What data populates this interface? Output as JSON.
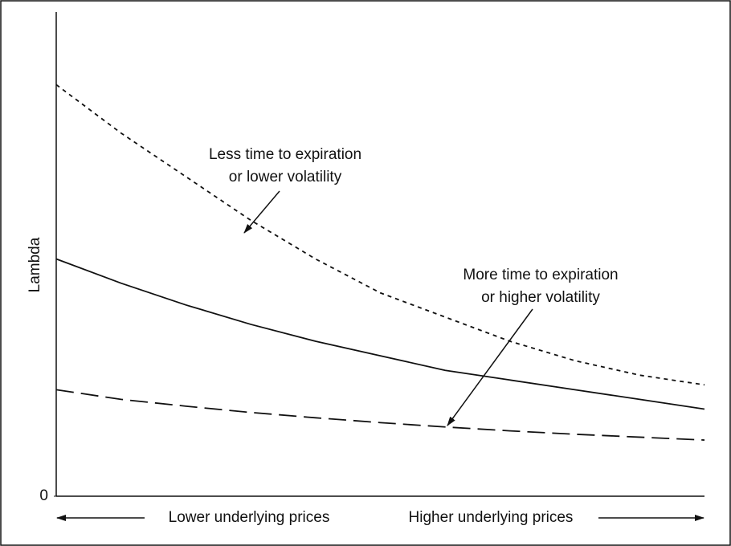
{
  "chart_data": {
    "type": "line",
    "ylabel": "Lambda",
    "x_left_label": "Lower underlying prices",
    "x_right_label": "Higher underlying prices",
    "x": [
      0,
      10,
      20,
      30,
      40,
      50,
      60,
      70,
      80,
      90,
      100
    ],
    "xlim": [
      0,
      100
    ],
    "ylim": [
      0,
      100
    ],
    "yticks": [
      0
    ],
    "series": [
      {
        "color": "#111111",
        "style": "dotted",
        "values": [
          85,
          75,
          66,
          57,
          49,
          42,
          37,
          32,
          28,
          25,
          23
        ]
      },
      {
        "color": "#111111",
        "style": "solid",
        "values": [
          49,
          44,
          39.5,
          35.5,
          32,
          29,
          26,
          24,
          22,
          20,
          18
        ]
      },
      {
        "color": "#111111",
        "style": "dashed",
        "values": [
          22,
          20,
          18.6,
          17.3,
          16.2,
          15.2,
          14.3,
          13.5,
          12.8,
          12.2,
          11.6
        ]
      }
    ],
    "annotations": [
      {
        "lines": [
          "Less time to expiration",
          "or lower volatility"
        ]
      },
      {
        "lines": [
          "More time to expiration",
          "or higher volatility"
        ]
      }
    ]
  }
}
